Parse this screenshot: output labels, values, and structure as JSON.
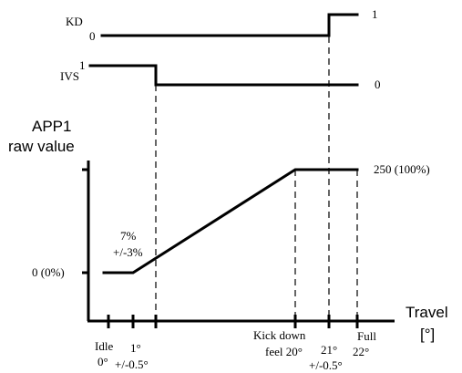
{
  "kd": {
    "label": "KD",
    "low": "0",
    "high": "1"
  },
  "ivs": {
    "label": "IVS",
    "high": "1",
    "low": "0"
  },
  "y_axis": {
    "line1": "APP1",
    "line2": "raw value"
  },
  "x_axis": {
    "line1": "Travel",
    "line2": "[°]"
  },
  "levels": {
    "max": "250 (100%)",
    "min": "0 (0%)"
  },
  "annotation": {
    "line1": "7%",
    "line2": "+/-3%"
  },
  "ticks": {
    "idle": {
      "line1": "Idle",
      "line2": "0°"
    },
    "one": {
      "line1": "1°",
      "line2": "+/-0.5°"
    },
    "kick": {
      "line1": "Kick down",
      "line2": "feel 20°"
    },
    "t21": {
      "line1": "21°",
      "line2": "+/-0.5°"
    },
    "full": {
      "line1": "Full",
      "line2": "22°"
    }
  },
  "chart_data": {
    "type": "line",
    "series": [
      {
        "name": "APP1 raw value",
        "x": [
          0,
          1,
          20,
          22
        ],
        "y": [
          0,
          0,
          250,
          250
        ]
      },
      {
        "name": "IVS",
        "x": [
          0,
          1.5,
          1.5,
          22
        ],
        "y": [
          1,
          1,
          0,
          0
        ]
      },
      {
        "name": "KD",
        "x": [
          0,
          21,
          21,
          22
        ],
        "y": [
          0,
          0,
          1,
          1
        ]
      }
    ]
  }
}
